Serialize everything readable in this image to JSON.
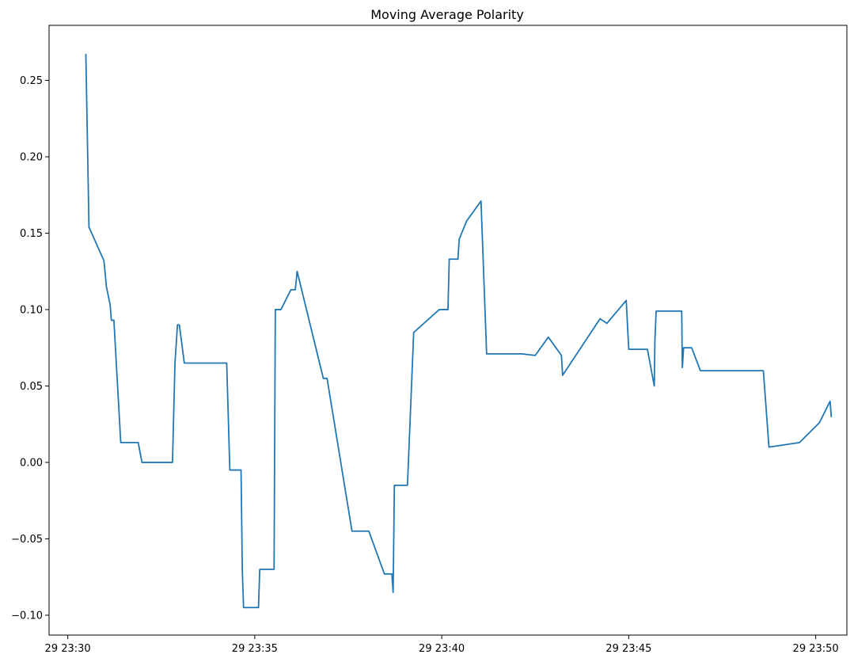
{
  "chart_data": {
    "type": "line",
    "title": "Moving Average Polarity",
    "xlabel": "",
    "ylabel": "",
    "x_unit": "minutes",
    "xlim": [
      "29 23:29:30",
      "29 23:50:50"
    ],
    "ylim": [
      -0.113,
      0.286
    ],
    "grid": false,
    "legend": "none",
    "line_color": "#1f77b4",
    "x_ticks": [
      {
        "label": "29 23:30",
        "value": "29 23:30:00"
      },
      {
        "label": "29 23:35",
        "value": "29 23:35:00"
      },
      {
        "label": "29 23:40",
        "value": "29 23:40:00"
      },
      {
        "label": "29 23:45",
        "value": "29 23:45:00"
      },
      {
        "label": "29 23:50",
        "value": "29 23:50:00"
      }
    ],
    "y_ticks": [
      {
        "label": "−0.10",
        "value": -0.1
      },
      {
        "label": "−0.05",
        "value": -0.05
      },
      {
        "label": "0.00",
        "value": 0.0
      },
      {
        "label": "0.05",
        "value": 0.05
      },
      {
        "label": "0.10",
        "value": 0.1
      },
      {
        "label": "0.15",
        "value": 0.15
      },
      {
        "label": "0.20",
        "value": 0.2
      },
      {
        "label": "0.25",
        "value": 0.25
      }
    ],
    "series": [
      {
        "name": "",
        "points": [
          [
            "29 23:30:29",
            0.267
          ],
          [
            "29 23:30:32",
            0.2
          ],
          [
            "29 23:30:34",
            0.154
          ],
          [
            "29 23:30:58",
            0.132
          ],
          [
            "29 23:31:02",
            0.115
          ],
          [
            "29 23:31:08",
            0.103
          ],
          [
            "29 23:31:10",
            0.093
          ],
          [
            "29 23:31:14",
            0.093
          ],
          [
            "29 23:31:25",
            0.013
          ],
          [
            "29 23:31:53",
            0.013
          ],
          [
            "29 23:31:59",
            0.0
          ],
          [
            "29 23:32:48",
            0.0
          ],
          [
            "29 23:32:52",
            0.065
          ],
          [
            "29 23:32:56",
            0.09
          ],
          [
            "29 23:32:59",
            0.09
          ],
          [
            "29 23:33:07",
            0.065
          ],
          [
            "29 23:34:15",
            0.065
          ],
          [
            "29 23:34:20",
            -0.005
          ],
          [
            "29 23:34:38",
            -0.005
          ],
          [
            "29 23:34:40",
            -0.07
          ],
          [
            "29 23:34:42",
            -0.095
          ],
          [
            "29 23:35:06",
            -0.095
          ],
          [
            "29 23:35:08",
            -0.07
          ],
          [
            "29 23:35:31",
            -0.07
          ],
          [
            "29 23:35:33",
            0.1
          ],
          [
            "29 23:35:42",
            0.1
          ],
          [
            "29 23:35:58",
            0.113
          ],
          [
            "29 23:36:05",
            0.113
          ],
          [
            "29 23:36:08",
            0.125
          ],
          [
            "29 23:36:50",
            0.055
          ],
          [
            "29 23:36:56",
            0.055
          ],
          [
            "29 23:37:36",
            -0.045
          ],
          [
            "29 23:38:03",
            -0.045
          ],
          [
            "29 23:38:28",
            -0.073
          ],
          [
            "29 23:38:40",
            -0.073
          ],
          [
            "29 23:38:42",
            -0.085
          ],
          [
            "29 23:38:44",
            -0.015
          ],
          [
            "29 23:39:05",
            -0.015
          ],
          [
            "29 23:39:15",
            0.085
          ],
          [
            "29 23:39:56",
            0.1
          ],
          [
            "29 23:40:10",
            0.1
          ],
          [
            "29 23:40:12",
            0.133
          ],
          [
            "29 23:40:26",
            0.133
          ],
          [
            "29 23:40:28",
            0.146
          ],
          [
            "29 23:40:40",
            0.158
          ],
          [
            "29 23:41:03",
            0.171
          ],
          [
            "29 23:41:12",
            0.071
          ],
          [
            "29 23:42:09",
            0.071
          ],
          [
            "29 23:42:30",
            0.07
          ],
          [
            "29 23:42:51",
            0.082
          ],
          [
            "29 23:43:12",
            0.07
          ],
          [
            "29 23:43:14",
            0.057
          ],
          [
            "29 23:44:14",
            0.094
          ],
          [
            "29 23:44:25",
            0.091
          ],
          [
            "29 23:44:56",
            0.106
          ],
          [
            "29 23:45:00",
            0.074
          ],
          [
            "29 23:45:30",
            0.074
          ],
          [
            "29 23:45:41",
            0.05
          ],
          [
            "29 23:45:42",
            0.08
          ],
          [
            "29 23:45:44",
            0.099
          ],
          [
            "29 23:46:25",
            0.099
          ],
          [
            "29 23:46:26",
            0.062
          ],
          [
            "29 23:46:28",
            0.075
          ],
          [
            "29 23:46:41",
            0.075
          ],
          [
            "29 23:46:55",
            0.06
          ],
          [
            "29 23:48:36",
            0.06
          ],
          [
            "29 23:48:45",
            0.01
          ],
          [
            "29 23:49:34",
            0.013
          ],
          [
            "29 23:50:06",
            0.026
          ],
          [
            "29 23:50:23",
            0.04
          ],
          [
            "29 23:50:25",
            0.03
          ]
        ]
      }
    ]
  }
}
